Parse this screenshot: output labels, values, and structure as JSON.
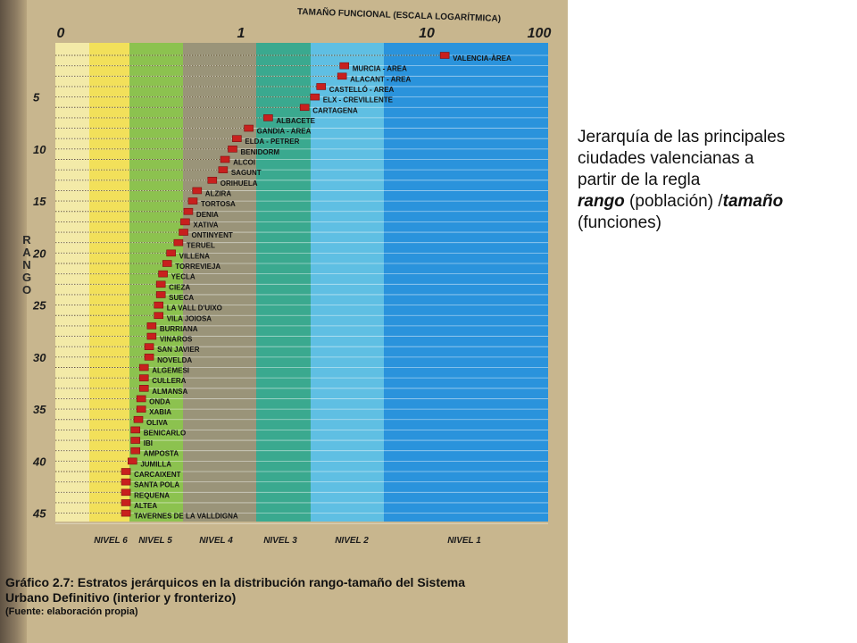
{
  "chart_data": {
    "type": "scatter",
    "xlabel": "TAMAÑO FUNCIONAL (ESCALA LOGARÍTMICA)",
    "ylabel": "RANGO",
    "x_scale": "log",
    "x_ticks": [
      "0",
      "1",
      "10",
      "100"
    ],
    "y_ticks": [
      "5",
      "10",
      "15",
      "20",
      "25",
      "30",
      "35",
      "40",
      "45"
    ],
    "y_range": [
      1,
      46
    ],
    "levels": [
      {
        "name": "NIVEL 6",
        "color": "#f2e05a"
      },
      {
        "name": "NIVEL 5",
        "color": "#8cc24f"
      },
      {
        "name": "NIVEL 4",
        "color": "#9a9479"
      },
      {
        "name": "NIVEL 3",
        "color": "#3aa98f"
      },
      {
        "name": "NIVEL 2",
        "color": "#5fbfe3"
      },
      {
        "name": "NIVEL 1",
        "color": "#2a93dc"
      }
    ],
    "marker_color": "#c8201e",
    "cities": [
      {
        "rank": 1,
        "name": "VALENCIA-ÀREA",
        "size": 12.5
      },
      {
        "rank": 2,
        "name": "MURCIA - AREA",
        "size": 3.6
      },
      {
        "rank": 3,
        "name": "ALACANT - AREA",
        "size": 3.5
      },
      {
        "rank": 4,
        "name": "CASTELLÓ - AREA",
        "size": 2.7
      },
      {
        "rank": 5,
        "name": "ELX - CREVILLENTE",
        "size": 2.5
      },
      {
        "rank": 6,
        "name": "CARTAGENA",
        "size": 2.2
      },
      {
        "rank": 7,
        "name": "ALBACETE",
        "size": 1.4
      },
      {
        "rank": 8,
        "name": "GANDIA - AREA",
        "size": 1.1
      },
      {
        "rank": 9,
        "name": "ELDA - PETRER",
        "size": 0.95
      },
      {
        "rank": 10,
        "name": "BENIDORM",
        "size": 0.9
      },
      {
        "rank": 11,
        "name": "ALCOI",
        "size": 0.82
      },
      {
        "rank": 12,
        "name": "SAGUNT",
        "size": 0.8
      },
      {
        "rank": 13,
        "name": "ORIHUELA",
        "size": 0.7
      },
      {
        "rank": 14,
        "name": "ALZIRA",
        "size": 0.58
      },
      {
        "rank": 15,
        "name": "TORTOSA",
        "size": 0.55
      },
      {
        "rank": 16,
        "name": "DENIA",
        "size": 0.52
      },
      {
        "rank": 17,
        "name": "XATIVA",
        "size": 0.5
      },
      {
        "rank": 18,
        "name": "ONTINYENT",
        "size": 0.49
      },
      {
        "rank": 19,
        "name": "TERUEL",
        "size": 0.46
      },
      {
        "rank": 20,
        "name": "VILLENA",
        "size": 0.42
      },
      {
        "rank": 21,
        "name": "TORREVIEJA",
        "size": 0.4
      },
      {
        "rank": 22,
        "name": "YECLA",
        "size": 0.38
      },
      {
        "rank": 23,
        "name": "CIEZA",
        "size": 0.37
      },
      {
        "rank": 24,
        "name": "SUECA",
        "size": 0.37
      },
      {
        "rank": 25,
        "name": "LA VALL D'UIXO",
        "size": 0.36
      },
      {
        "rank": 26,
        "name": "VILA JOIOSA",
        "size": 0.36
      },
      {
        "rank": 27,
        "name": "BURRIANA",
        "size": 0.33
      },
      {
        "rank": 28,
        "name": "VINAROS",
        "size": 0.33
      },
      {
        "rank": 29,
        "name": "SAN JAVIER",
        "size": 0.32
      },
      {
        "rank": 30,
        "name": "NOVELDA",
        "size": 0.32
      },
      {
        "rank": 31,
        "name": "ALGEMESI",
        "size": 0.3
      },
      {
        "rank": 32,
        "name": "CULLERA",
        "size": 0.3
      },
      {
        "rank": 33,
        "name": "ALMANSA",
        "size": 0.3
      },
      {
        "rank": 34,
        "name": "ONDA",
        "size": 0.29
      },
      {
        "rank": 35,
        "name": "XABIA",
        "size": 0.29
      },
      {
        "rank": 36,
        "name": "OLIVA",
        "size": 0.28
      },
      {
        "rank": 37,
        "name": "BENICARLO",
        "size": 0.27
      },
      {
        "rank": 38,
        "name": "IBI",
        "size": 0.27
      },
      {
        "rank": 39,
        "name": "AMPOSTA",
        "size": 0.27
      },
      {
        "rank": 40,
        "name": "JUMILLA",
        "size": 0.26
      },
      {
        "rank": 41,
        "name": "CARCAIXENT",
        "size": 0.24
      },
      {
        "rank": 42,
        "name": "SANTA POLA",
        "size": 0.24
      },
      {
        "rank": 43,
        "name": "REQUENA",
        "size": 0.24
      },
      {
        "rank": 44,
        "name": "ALTEA",
        "size": 0.24
      },
      {
        "rank": 45,
        "name": "TAVERNES DE LA VALLDIGNA",
        "size": 0.24
      }
    ]
  },
  "caption": {
    "line1": "Gráfico 2.7:  Estratos jerárquicos en la distribución rango-tamaño del Sistema",
    "line2": "Urbano Definitivo (interior y fronterizo)",
    "source": "(Fuente: elaboración propia)"
  },
  "note": {
    "l1": "Jerarquía de las principales",
    "l2": "ciudades valencianas a",
    "l3": "partir de la regla",
    "l4a": "rango",
    "l4b": " (población) /",
    "l4c": "tamaño",
    "l5": "(funciones)"
  }
}
